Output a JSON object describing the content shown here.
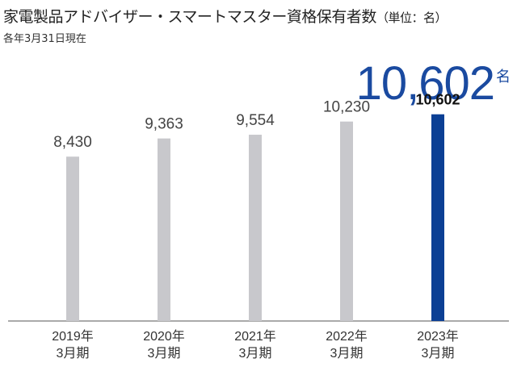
{
  "title": "家電製品アドバイザー・スマートマスター資格保有者数",
  "unit_note": "（単位：名）",
  "subtitle": "各年3月31日現在",
  "highlight": {
    "value": "10,602",
    "unit": "名"
  },
  "colors": {
    "bar": "#c8c8cc",
    "highlight_bar": "#0b3f94",
    "highlight_text": "#1a4aa0",
    "axis": "#555555"
  },
  "chart_data": {
    "type": "bar",
    "categories": [
      "2019年\n3月期",
      "2020年\n3月期",
      "2021年\n3月期",
      "2022年\n3月期",
      "2023年\n3月期"
    ],
    "category_lines": [
      [
        "2019年",
        "3月期"
      ],
      [
        "2020年",
        "3月期"
      ],
      [
        "2021年",
        "3月期"
      ],
      [
        "2022年",
        "3月期"
      ],
      [
        "2023年",
        "3月期"
      ]
    ],
    "values": [
      8430,
      9363,
      9554,
      10230,
      10602
    ],
    "value_labels": [
      "8,430",
      "9,363",
      "9,554",
      "10,230",
      "10,602"
    ],
    "highlight_index": 4,
    "ylim": [
      0,
      11500
    ],
    "grid": false
  }
}
